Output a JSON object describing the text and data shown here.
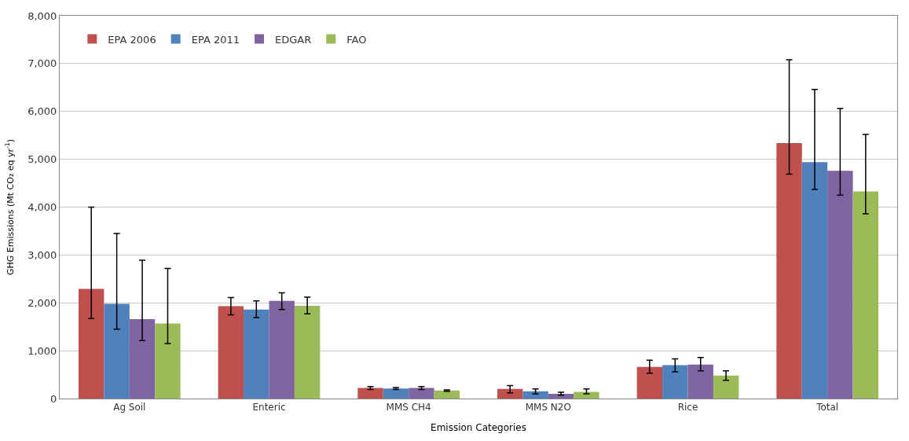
{
  "chart_data": {
    "type": "bar",
    "xlabel": "Emission Categories",
    "ylabel": "GHG Emissions (Mt CO₂ eq yr$^{-1}$)",
    "categories": [
      "Ag Soil",
      "Enteric",
      "MMS CH4",
      "MMS N2O",
      "Rice",
      "Total"
    ],
    "ylim": [
      0,
      8000
    ],
    "yticks": [
      {
        "value": 0,
        "label": "0"
      },
      {
        "value": 1000,
        "label": "1,000"
      },
      {
        "value": 2000,
        "label": "2,000"
      },
      {
        "value": 3000,
        "label": "3,000"
      },
      {
        "value": 4000,
        "label": "4,000"
      },
      {
        "value": 5000,
        "label": "5,000"
      },
      {
        "value": 6000,
        "label": "6,000"
      },
      {
        "value": 7000,
        "label": "7,000"
      },
      {
        "value": 8000,
        "label": "8,000"
      }
    ],
    "grid": "y",
    "legend": "top left",
    "series": [
      {
        "name": "EPA 2006",
        "color": "#c0504d",
        "values": [
          2290,
          1930,
          220,
          200,
          660,
          5340
        ],
        "errors": [
          [
            1670,
            4000
          ],
          [
            1750,
            2110
          ],
          [
            190,
            250
          ],
          [
            120,
            270
          ],
          [
            530,
            800
          ],
          [
            4690,
            7080
          ]
        ]
      },
      {
        "name": "EPA 2011",
        "color": "#4f81bd",
        "values": [
          1980,
          1860,
          210,
          150,
          700,
          4940
        ],
        "errors": [
          [
            1450,
            3450
          ],
          [
            1690,
            2040
          ],
          [
            190,
            230
          ],
          [
            100,
            200
          ],
          [
            560,
            830
          ],
          [
            4370,
            6460
          ]
        ]
      },
      {
        "name": "EDGAR",
        "color": "#8064a2",
        "values": [
          1660,
          2040,
          220,
          100,
          710,
          4760
        ],
        "errors": [
          [
            1210,
            2890
          ],
          [
            1860,
            2210
          ],
          [
            190,
            250
          ],
          [
            70,
            130
          ],
          [
            580,
            860
          ],
          [
            4250,
            6060
          ]
        ]
      },
      {
        "name": "FAO",
        "color": "#9bbb59",
        "values": [
          1570,
          1940,
          170,
          140,
          480,
          4330
        ],
        "errors": [
          [
            1150,
            2720
          ],
          [
            1770,
            2120
          ],
          [
            150,
            180
          ],
          [
            100,
            200
          ],
          [
            380,
            580
          ],
          [
            3860,
            5520
          ]
        ]
      }
    ]
  }
}
